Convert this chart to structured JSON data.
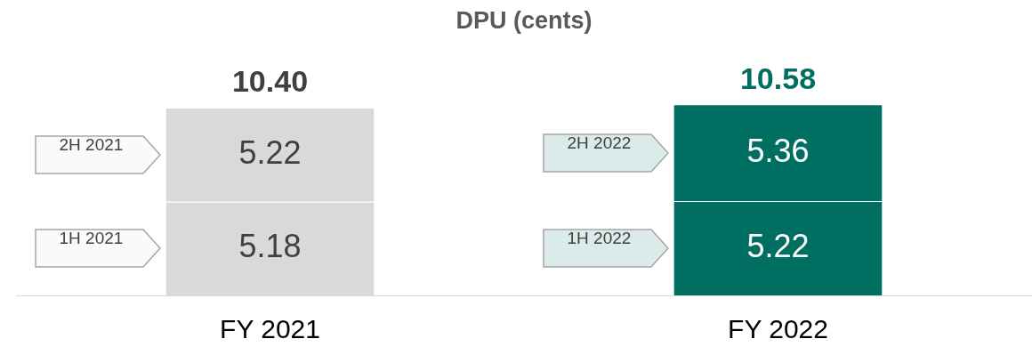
{
  "chart_data": {
    "type": "bar",
    "title": "DPU (cents)",
    "categories": [
      "FY 2021",
      "FY 2022"
    ],
    "stacked": true,
    "data_labels": true,
    "series": [
      {
        "values": [
          5.18,
          5.22
        ],
        "colors": [
          "#d9d9d9",
          "#006f62"
        ]
      },
      {
        "values": [
          5.22,
          5.36
        ],
        "colors": [
          "#d9d9d9",
          "#006f62"
        ]
      }
    ],
    "totals": [
      "10.40",
      "10.58"
    ],
    "annotations": [
      "1H 2021",
      "2H 2021",
      "1H 2022",
      "2H 2022"
    ]
  }
}
